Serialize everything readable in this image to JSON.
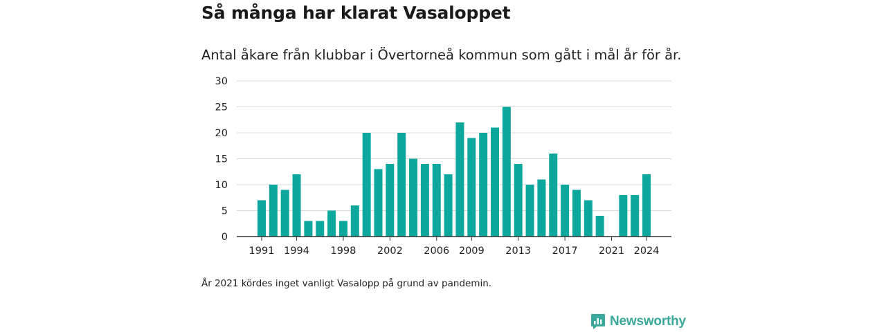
{
  "title": "Så många har klarat Vasaloppet",
  "subtitle": "Antal åkare från klubbar i Övertorneå kommun som gått i mål år för år.",
  "note": "År 2021 kördes inget vanligt Vasalopp på grund av pandemin.",
  "brand": {
    "name": "Newsworthy",
    "color": "#3aa89b"
  },
  "colors": {
    "bar": "#0ca79d",
    "grid": "#d9d9d9",
    "axis": "#333333"
  },
  "chart_data": {
    "type": "bar",
    "categories": [
      "1991",
      "1992",
      "1993",
      "1994",
      "1995",
      "1996",
      "1997",
      "1998",
      "1999",
      "2000",
      "2001",
      "2002",
      "2003",
      "2004",
      "2005",
      "2006",
      "2007",
      "2008",
      "2009",
      "2010",
      "2011",
      "2012",
      "2013",
      "2014",
      "2015",
      "2016",
      "2017",
      "2018",
      "2019",
      "2020",
      "2021",
      "2022",
      "2023",
      "2024"
    ],
    "values": [
      7,
      10,
      9,
      12,
      3,
      3,
      5,
      3,
      6,
      20,
      13,
      14,
      20,
      15,
      14,
      14,
      12,
      22,
      19,
      20,
      21,
      25,
      14,
      10,
      11,
      16,
      10,
      9,
      7,
      4,
      0,
      8,
      8,
      12
    ],
    "x_tick_labels": [
      "1991",
      "1994",
      "1998",
      "2002",
      "2006",
      "2009",
      "2013",
      "2017",
      "2021",
      "2024"
    ],
    "y_ticks": [
      0,
      5,
      10,
      15,
      20,
      25,
      30
    ],
    "ylim": [
      0,
      30
    ],
    "grid": true
  }
}
